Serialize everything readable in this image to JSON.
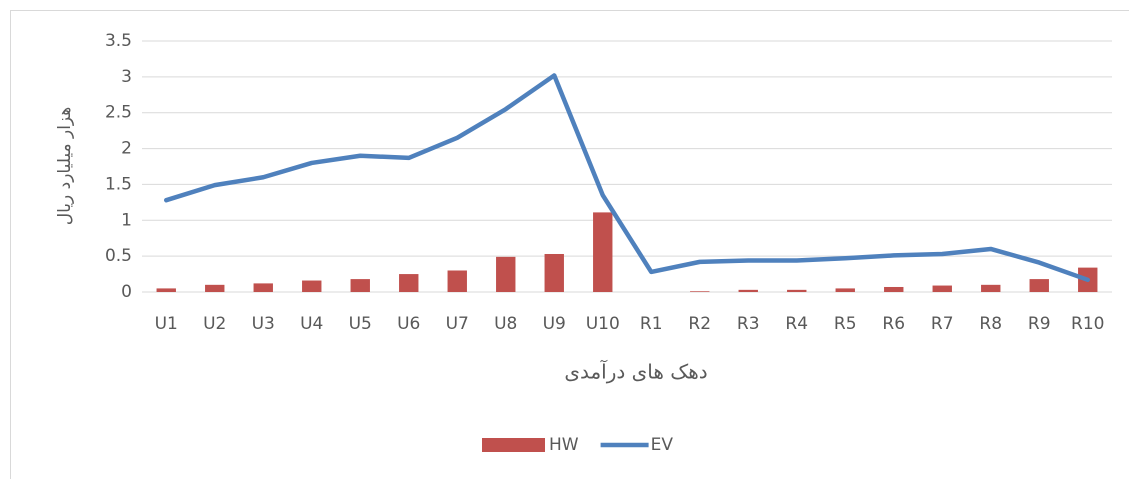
{
  "chart_data": {
    "type": "combo",
    "x_label": "دهک های درآمدی",
    "y_label": "هزار میلیارد ریال",
    "categories": [
      "U1",
      "U2",
      "U3",
      "U4",
      "U5",
      "U6",
      "U7",
      "U8",
      "U9",
      "U10",
      "R1",
      "R2",
      "R3",
      "R4",
      "R5",
      "R6",
      "R7",
      "R8",
      "R9",
      "R10"
    ],
    "series": [
      {
        "name": "HW",
        "type": "bar",
        "color": "#c0504d",
        "values": [
          0.05,
          0.1,
          0.12,
          0.16,
          0.18,
          0.25,
          0.3,
          0.49,
          0.53,
          1.11,
          0,
          0.01,
          0.03,
          0.03,
          0.05,
          0.07,
          0.09,
          0.1,
          0.18,
          0.34
        ]
      },
      {
        "name": "EV",
        "type": "line",
        "color": "#4f81bd",
        "values": [
          1.28,
          1.49,
          1.6,
          1.8,
          1.9,
          1.87,
          2.15,
          2.55,
          3.02,
          1.35,
          0.28,
          0.42,
          0.44,
          0.44,
          0.47,
          0.51,
          0.53,
          0.6,
          0.41,
          0.17
        ]
      }
    ],
    "ylim": [
      0,
      3.5
    ],
    "yticks": [
      0,
      0.5,
      1,
      1.5,
      2,
      2.5,
      3,
      3.5
    ],
    "grid": true,
    "legend": "bottom"
  }
}
